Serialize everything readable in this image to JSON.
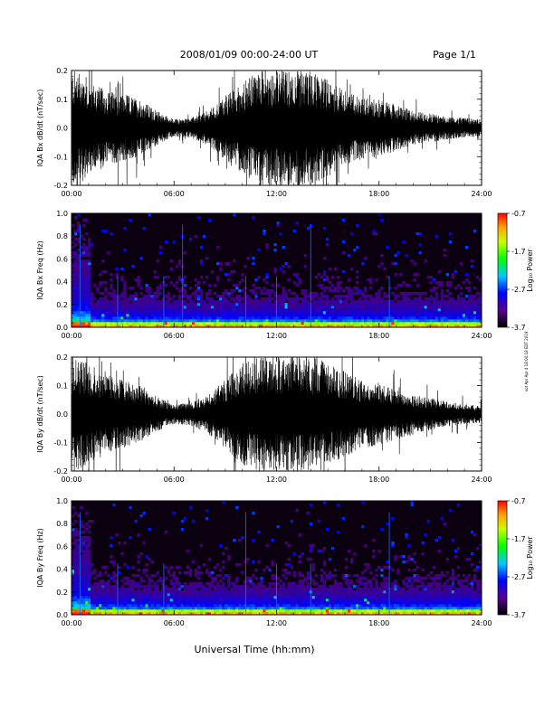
{
  "header": {
    "title": "2008/01/09  00:00-24:00 UT",
    "page": "Page 1/1"
  },
  "side_note": "not Apr Apr 4 18:00:18 EDT 2019",
  "xlabel": "Universal Time (hh:mm)",
  "colors": {
    "background": "#ffffff",
    "trace": "#000000",
    "spectrogram_background": "#0a0010"
  },
  "chart_data": [
    {
      "type": "line",
      "ylabel": "IQA Bx dB/dt (nT/sec)",
      "x_ticks": [
        "00:00",
        "06:00",
        "12:00",
        "18:00",
        "24:00"
      ],
      "y_ticks": [
        "0.2",
        "0.1",
        "0.0",
        "-0.1",
        "-0.2"
      ],
      "xlim": [
        0,
        24
      ],
      "ylim": [
        -0.2,
        0.2
      ],
      "envelope": {
        "x": [
          0,
          0.5,
          1,
          1.5,
          2,
          3,
          4,
          5,
          6,
          7,
          8,
          9,
          10,
          11,
          12,
          13,
          14,
          15,
          16,
          17,
          18,
          19,
          20,
          21,
          22,
          23,
          24
        ],
        "amplitude": [
          0.2,
          0.2,
          0.16,
          0.15,
          0.13,
          0.12,
          0.1,
          0.06,
          0.03,
          0.035,
          0.06,
          0.11,
          0.16,
          0.2,
          0.2,
          0.2,
          0.2,
          0.17,
          0.13,
          0.11,
          0.1,
          0.08,
          0.06,
          0.05,
          0.04,
          0.035,
          0.03
        ]
      }
    },
    {
      "type": "heatmap",
      "ylabel": "IQA Bx Freq (Hz)",
      "x_ticks": [
        "00:00",
        "06:00",
        "12:00",
        "18:00",
        "24:00"
      ],
      "y_ticks": [
        "1.0",
        "0.8",
        "0.6",
        "0.4",
        "0.2",
        "0.0"
      ],
      "xlim": [
        0,
        24
      ],
      "ylim": [
        0,
        1.0
      ],
      "colorbar": {
        "label": "Log₁₀ Power",
        "ticks": [
          "-0.7",
          "-1.7",
          "-2.7",
          "-3.7"
        ],
        "range": [
          -3.7,
          -0.7
        ]
      },
      "vertical_lines_hours": [
        0.5,
        2.7,
        5.4,
        6.5,
        10.2,
        12.0,
        14.0,
        18.6
      ]
    },
    {
      "type": "line",
      "ylabel": "IQA By dB/dt (nT/sec)",
      "x_ticks": [
        "00:00",
        "06:00",
        "12:00",
        "18:00",
        "24:00"
      ],
      "y_ticks": [
        "0.2",
        "0.1",
        "0.0",
        "-0.1",
        "-0.2"
      ],
      "xlim": [
        0,
        24
      ],
      "ylim": [
        -0.2,
        0.2
      ],
      "envelope": {
        "x": [
          0,
          0.5,
          1,
          1.5,
          2,
          3,
          4,
          5,
          6,
          7,
          8,
          9,
          10,
          11,
          12,
          13,
          14,
          15,
          16,
          17,
          18,
          19,
          20,
          21,
          22,
          23,
          24
        ],
        "amplitude": [
          0.2,
          0.2,
          0.18,
          0.16,
          0.14,
          0.12,
          0.1,
          0.06,
          0.035,
          0.04,
          0.07,
          0.12,
          0.18,
          0.2,
          0.2,
          0.2,
          0.2,
          0.18,
          0.15,
          0.12,
          0.11,
          0.09,
          0.07,
          0.055,
          0.045,
          0.035,
          0.03
        ]
      }
    },
    {
      "type": "heatmap",
      "ylabel": "IQA By Freq (Hz)",
      "x_ticks": [
        "00:00",
        "06:00",
        "12:00",
        "18:00",
        "24:00"
      ],
      "y_ticks": [
        "1.0",
        "0.8",
        "0.6",
        "0.4",
        "0.2",
        "0.0"
      ],
      "xlim": [
        0,
        24
      ],
      "ylim": [
        0,
        1.0
      ],
      "colorbar": {
        "label": "Log₁₀ Power",
        "ticks": [
          "-0.7",
          "-1.7",
          "-2.7",
          "-3.7"
        ],
        "range": [
          -3.7,
          -0.7
        ]
      },
      "vertical_lines_hours": [
        0.5,
        2.7,
        5.4,
        10.2,
        12.0,
        14.0,
        18.6
      ]
    }
  ]
}
